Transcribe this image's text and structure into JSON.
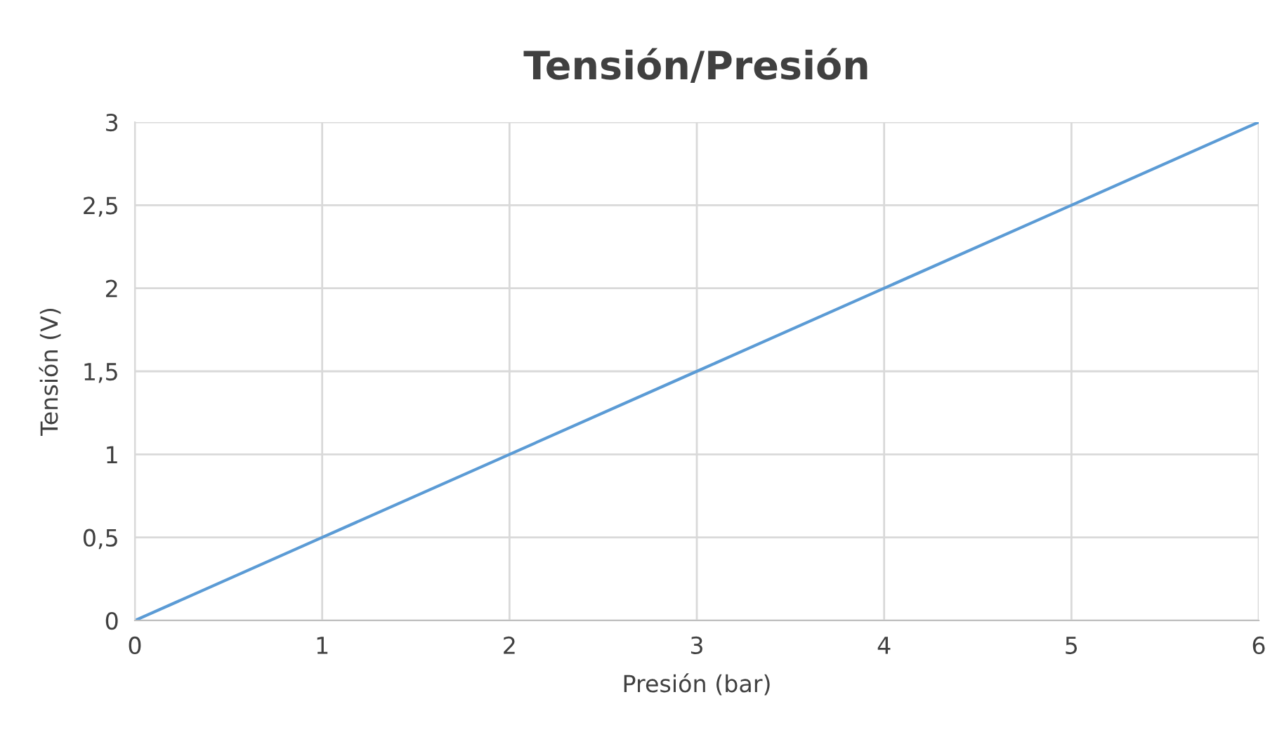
{
  "chart_data": {
    "type": "line",
    "title": "Tensión/Presión",
    "xlabel": "Presión (bar)",
    "ylabel": "Tensión (V)",
    "x": [
      0,
      1,
      2,
      3,
      4,
      5,
      6
    ],
    "series": [
      {
        "color": "#5b9bd5",
        "values": [
          0,
          0.5,
          1,
          1.5,
          2,
          2.5,
          3
        ]
      }
    ],
    "xlim": [
      0,
      6
    ],
    "ylim": [
      0,
      3
    ],
    "xticks": [
      0,
      1,
      2,
      3,
      4,
      5,
      6
    ],
    "yticks": [
      0,
      {
        "value": 0.5,
        "label": "0,5"
      },
      1,
      {
        "value": 1.5,
        "label": "1,5"
      },
      2,
      {
        "value": 2.5,
        "label": "2,5"
      },
      3
    ],
    "grid": true,
    "legend": false,
    "marker": "none",
    "line_style": "solid"
  }
}
